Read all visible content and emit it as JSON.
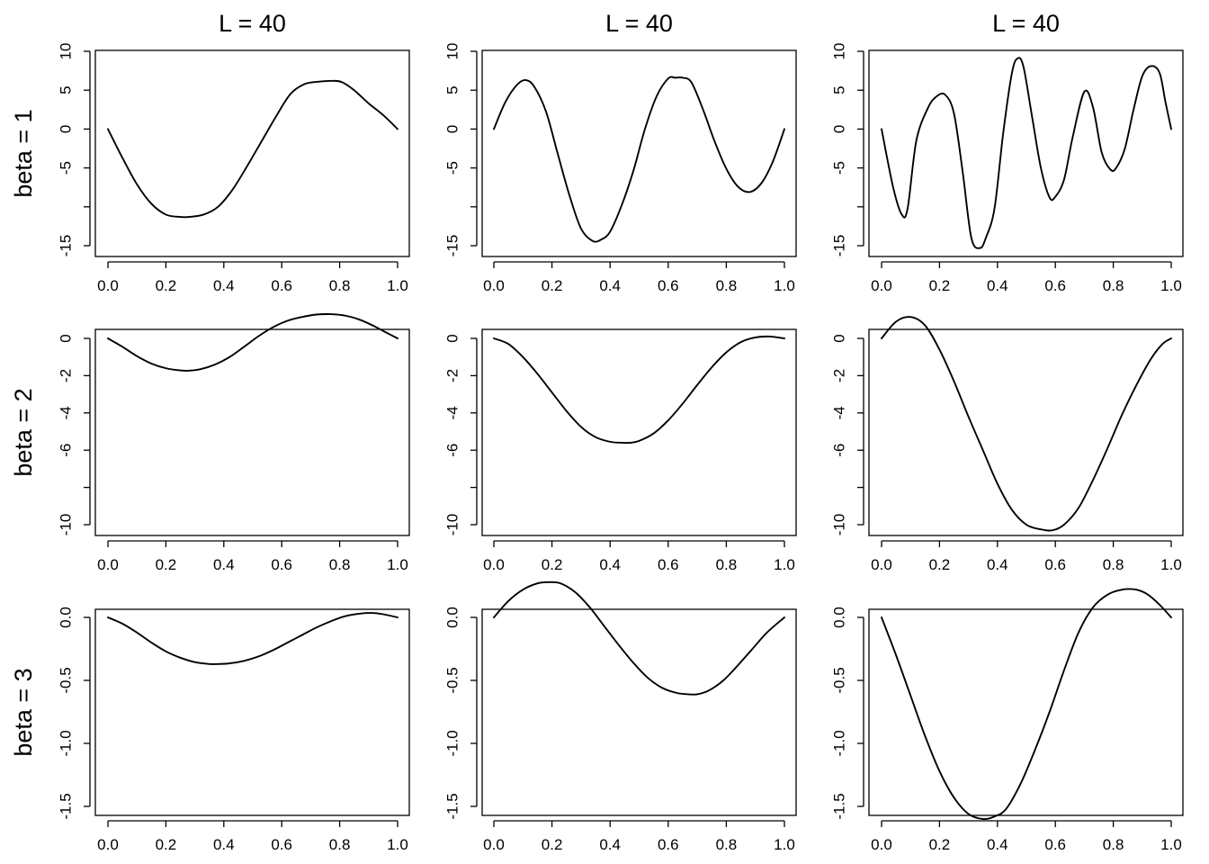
{
  "figure": {
    "column_titles": [
      "L = 40",
      "L = 40",
      "L = 40"
    ],
    "row_labels": [
      "beta = 1",
      "beta = 2",
      "beta = 3"
    ]
  },
  "chart_data": [
    {
      "type": "line",
      "row": 0,
      "col": 0,
      "title": "L = 40",
      "row_label": "beta = 1",
      "xlim": [
        0,
        1
      ],
      "ylim": [
        -16.3,
        10
      ],
      "xticks": [
        0.0,
        0.2,
        0.4,
        0.6,
        0.8,
        1.0
      ],
      "xtick_labels": [
        "0.0",
        "0.2",
        "0.4",
        "0.6",
        "0.8",
        "1.0"
      ],
      "yticks": [
        10,
        5,
        0,
        -5,
        -10,
        -15
      ],
      "ytick_labels": [
        "10",
        "5",
        "0",
        "-5",
        "",
        "-15"
      ],
      "series": [
        {
          "x": [
            0.0,
            0.05,
            0.1,
            0.15,
            0.2,
            0.25,
            0.28,
            0.33,
            0.38,
            0.43,
            0.48,
            0.53,
            0.58,
            0.63,
            0.68,
            0.73,
            0.78,
            0.81,
            0.85,
            0.9,
            0.95,
            1.0
          ],
          "y": [
            0.0,
            -3.7,
            -7.1,
            -9.6,
            -11.0,
            -11.3,
            -11.3,
            -11.0,
            -10.0,
            -7.8,
            -4.8,
            -1.6,
            1.6,
            4.5,
            5.8,
            6.1,
            6.2,
            6.0,
            5.0,
            3.3,
            1.8,
            0.0
          ]
        }
      ]
    },
    {
      "type": "line",
      "row": 0,
      "col": 1,
      "title": "L = 40",
      "row_label": "beta = 1",
      "xlim": [
        0,
        1
      ],
      "ylim": [
        -16.3,
        10
      ],
      "xticks": [
        0.0,
        0.2,
        0.4,
        0.6,
        0.8,
        1.0
      ],
      "xtick_labels": [
        "0.0",
        "0.2",
        "0.4",
        "0.6",
        "0.8",
        "1.0"
      ],
      "yticks": [
        10,
        5,
        0,
        -5,
        -10,
        -15
      ],
      "ytick_labels": [
        "10",
        "5",
        "0",
        "-5",
        "",
        "-15"
      ],
      "series": [
        {
          "x": [
            0.0,
            0.04,
            0.08,
            0.11,
            0.14,
            0.18,
            0.22,
            0.26,
            0.3,
            0.34,
            0.37,
            0.4,
            0.44,
            0.48,
            0.52,
            0.56,
            0.6,
            0.625,
            0.65,
            0.68,
            0.72,
            0.76,
            0.8,
            0.84,
            0.88,
            0.92,
            0.96,
            1.0
          ],
          "y": [
            0.0,
            3.5,
            5.7,
            6.3,
            5.4,
            2.2,
            -3.2,
            -8.5,
            -12.8,
            -14.4,
            -14.2,
            -13.2,
            -9.8,
            -5.4,
            0.0,
            4.2,
            6.5,
            6.6,
            6.6,
            6.0,
            2.5,
            -1.6,
            -5.1,
            -7.4,
            -8.1,
            -7.0,
            -4.2,
            0.0
          ]
        }
      ]
    },
    {
      "type": "line",
      "row": 0,
      "col": 2,
      "title": "L = 40",
      "row_label": "beta = 1",
      "xlim": [
        0,
        1
      ],
      "ylim": [
        -16.3,
        10
      ],
      "xticks": [
        0.0,
        0.2,
        0.4,
        0.6,
        0.8,
        1.0
      ],
      "xtick_labels": [
        "0.0",
        "0.2",
        "0.4",
        "0.6",
        "0.8",
        "1.0"
      ],
      "yticks": [
        10,
        5,
        0,
        -5,
        -10,
        -15
      ],
      "ytick_labels": [
        "10",
        "5",
        "0",
        "-5",
        "",
        "-15"
      ],
      "series": [
        {
          "x": [
            0.0,
            0.04,
            0.07,
            0.09,
            0.12,
            0.16,
            0.19,
            0.22,
            0.25,
            0.28,
            0.31,
            0.34,
            0.36,
            0.39,
            0.42,
            0.45,
            0.47,
            0.49,
            0.52,
            0.55,
            0.58,
            0.6,
            0.63,
            0.66,
            0.7,
            0.73,
            0.76,
            0.79,
            0.81,
            0.84,
            0.87,
            0.9,
            0.93,
            0.96,
            0.98,
            1.0
          ],
          "y": [
            0.0,
            -7.5,
            -11.0,
            -10.2,
            -1.5,
            2.7,
            4.2,
            4.4,
            2.0,
            -5.5,
            -14.0,
            -15.3,
            -14.0,
            -10.2,
            -0.5,
            7.2,
            9.1,
            8.0,
            1.5,
            -5.0,
            -8.8,
            -8.7,
            -6.5,
            -1.0,
            4.8,
            2.8,
            -3.0,
            -5.2,
            -5.0,
            -2.5,
            2.5,
            6.8,
            8.1,
            7.2,
            3.5,
            0.0
          ]
        }
      ]
    },
    {
      "type": "line",
      "row": 1,
      "col": 0,
      "title": "",
      "row_label": "beta = 2",
      "xlim": [
        0,
        1
      ],
      "ylim": [
        -10.8,
        1.5
      ],
      "xticks": [
        0.0,
        0.2,
        0.4,
        0.6,
        0.8,
        1.0
      ],
      "xtick_labels": [
        "0.0",
        "0.2",
        "0.4",
        "0.6",
        "0.8",
        "1.0"
      ],
      "yticks": [
        0,
        -2,
        -4,
        -6,
        -8,
        -10
      ],
      "ytick_labels": [
        "0",
        "-2",
        "-4",
        "-6",
        "",
        "-10"
      ],
      "series": [
        {
          "x": [
            0.0,
            0.05,
            0.1,
            0.15,
            0.2,
            0.25,
            0.28,
            0.32,
            0.37,
            0.42,
            0.47,
            0.52,
            0.57,
            0.62,
            0.67,
            0.72,
            0.77,
            0.82,
            0.87,
            0.92,
            0.96,
            1.0
          ],
          "y": [
            0.0,
            -0.45,
            -0.95,
            -1.35,
            -1.6,
            -1.72,
            -1.73,
            -1.65,
            -1.4,
            -1.0,
            -0.45,
            0.12,
            0.6,
            0.95,
            1.15,
            1.28,
            1.3,
            1.22,
            1.0,
            0.65,
            0.32,
            0.0
          ]
        }
      ]
    },
    {
      "type": "line",
      "row": 1,
      "col": 1,
      "title": "",
      "row_label": "beta = 2",
      "xlim": [
        0,
        1
      ],
      "ylim": [
        -10.8,
        1.5
      ],
      "xticks": [
        0.0,
        0.2,
        0.4,
        0.6,
        0.8,
        1.0
      ],
      "xtick_labels": [
        "0.0",
        "0.2",
        "0.4",
        "0.6",
        "0.8",
        "1.0"
      ],
      "yticks": [
        0,
        -2,
        -4,
        -6,
        -8,
        -10
      ],
      "ytick_labels": [
        "0",
        "-2",
        "-4",
        "-6",
        "",
        "-10"
      ],
      "series": [
        {
          "x": [
            0.0,
            0.05,
            0.1,
            0.15,
            0.2,
            0.25,
            0.3,
            0.35,
            0.4,
            0.44,
            0.47,
            0.5,
            0.55,
            0.6,
            0.65,
            0.7,
            0.75,
            0.8,
            0.85,
            0.9,
            0.95,
            1.0
          ],
          "y": [
            0.0,
            -0.3,
            -1.0,
            -1.9,
            -2.9,
            -3.9,
            -4.75,
            -5.3,
            -5.55,
            -5.6,
            -5.6,
            -5.5,
            -5.1,
            -4.4,
            -3.5,
            -2.5,
            -1.55,
            -0.75,
            -0.2,
            0.05,
            0.1,
            0.0
          ]
        }
      ]
    },
    {
      "type": "line",
      "row": 1,
      "col": 2,
      "title": "",
      "row_label": "beta = 2",
      "xlim": [
        0,
        1
      ],
      "ylim": [
        -10.8,
        1.5
      ],
      "xticks": [
        0.0,
        0.2,
        0.4,
        0.6,
        0.8,
        1.0
      ],
      "xtick_labels": [
        "0.0",
        "0.2",
        "0.4",
        "0.6",
        "0.8",
        "1.0"
      ],
      "yticks": [
        0,
        -2,
        -4,
        -6,
        -8,
        -10
      ],
      "ytick_labels": [
        "0",
        "-2",
        "-4",
        "-6",
        "",
        "-10"
      ],
      "series": [
        {
          "x": [
            0.0,
            0.05,
            0.1,
            0.15,
            0.2,
            0.25,
            0.3,
            0.35,
            0.4,
            0.45,
            0.5,
            0.55,
            0.59,
            0.63,
            0.68,
            0.73,
            0.78,
            0.83,
            0.88,
            0.93,
            0.97,
            1.0
          ],
          "y": [
            0.0,
            0.9,
            1.15,
            0.7,
            -0.6,
            -2.3,
            -4.2,
            -6.0,
            -7.8,
            -9.2,
            -10.0,
            -10.25,
            -10.3,
            -10.0,
            -9.1,
            -7.6,
            -5.9,
            -4.1,
            -2.5,
            -1.1,
            -0.3,
            0.0
          ]
        }
      ]
    },
    {
      "type": "line",
      "row": 2,
      "col": 0,
      "title": "",
      "row_label": "beta = 3",
      "xlim": [
        0,
        1
      ],
      "ylim": [
        -1.65,
        0.37
      ],
      "xticks": [
        0.0,
        0.2,
        0.4,
        0.6,
        0.8,
        1.0
      ],
      "xtick_labels": [
        "0.0",
        "0.2",
        "0.4",
        "0.6",
        "0.8",
        "1.0"
      ],
      "yticks": [
        0.0,
        -0.5,
        -1.0,
        -1.5
      ],
      "ytick_labels": [
        "0.0",
        "-0.5",
        "-1.0",
        "-1.5"
      ],
      "series": [
        {
          "x": [
            0.0,
            0.05,
            0.1,
            0.15,
            0.2,
            0.25,
            0.3,
            0.35,
            0.38,
            0.42,
            0.47,
            0.52,
            0.57,
            0.62,
            0.67,
            0.72,
            0.77,
            0.82,
            0.87,
            0.91,
            0.95,
            1.0
          ],
          "y": [
            0.0,
            -0.05,
            -0.12,
            -0.2,
            -0.27,
            -0.32,
            -0.355,
            -0.37,
            -0.37,
            -0.365,
            -0.345,
            -0.31,
            -0.26,
            -0.2,
            -0.14,
            -0.08,
            -0.03,
            0.01,
            0.03,
            0.035,
            0.025,
            0.0
          ]
        }
      ]
    },
    {
      "type": "line",
      "row": 2,
      "col": 1,
      "title": "",
      "row_label": "beta = 3",
      "xlim": [
        0,
        1
      ],
      "ylim": [
        -1.65,
        0.37
      ],
      "xticks": [
        0.0,
        0.2,
        0.4,
        0.6,
        0.8,
        1.0
      ],
      "xtick_labels": [
        "0.0",
        "0.2",
        "0.4",
        "0.6",
        "0.8",
        "1.0"
      ],
      "yticks": [
        0.0,
        -0.5,
        -1.0,
        -1.5
      ],
      "ytick_labels": [
        "0.0",
        "-0.5",
        "-1.0",
        "-1.5"
      ],
      "series": [
        {
          "x": [
            0.0,
            0.05,
            0.1,
            0.15,
            0.19,
            0.23,
            0.28,
            0.33,
            0.38,
            0.43,
            0.48,
            0.53,
            0.58,
            0.63,
            0.67,
            0.7,
            0.74,
            0.79,
            0.84,
            0.89,
            0.94,
            1.0
          ],
          "y": [
            0.0,
            0.13,
            0.22,
            0.27,
            0.28,
            0.27,
            0.2,
            0.08,
            -0.07,
            -0.22,
            -0.36,
            -0.48,
            -0.56,
            -0.6,
            -0.61,
            -0.61,
            -0.58,
            -0.5,
            -0.38,
            -0.25,
            -0.12,
            0.0
          ]
        }
      ]
    },
    {
      "type": "line",
      "row": 2,
      "col": 2,
      "title": "",
      "row_label": "beta = 3",
      "xlim": [
        0,
        1
      ],
      "ylim": [
        -1.65,
        0.37
      ],
      "xticks": [
        0.0,
        0.2,
        0.4,
        0.6,
        0.8,
        1.0
      ],
      "xtick_labels": [
        "0.0",
        "0.2",
        "0.4",
        "0.6",
        "0.8",
        "1.0"
      ],
      "yticks": [
        0.0,
        -0.5,
        -1.0,
        -1.5
      ],
      "ytick_labels": [
        "0.0",
        "-0.5",
        "-1.0",
        "-1.5"
      ],
      "series": [
        {
          "x": [
            0.0,
            0.05,
            0.1,
            0.15,
            0.2,
            0.25,
            0.3,
            0.35,
            0.39,
            0.43,
            0.48,
            0.53,
            0.58,
            0.63,
            0.68,
            0.73,
            0.78,
            0.83,
            0.88,
            0.92,
            0.96,
            1.0
          ],
          "y": [
            0.0,
            -0.3,
            -0.62,
            -0.94,
            -1.22,
            -1.43,
            -1.56,
            -1.6,
            -1.58,
            -1.52,
            -1.32,
            -1.05,
            -0.75,
            -0.42,
            -0.12,
            0.08,
            0.18,
            0.22,
            0.22,
            0.18,
            0.1,
            0.0
          ]
        }
      ]
    }
  ]
}
